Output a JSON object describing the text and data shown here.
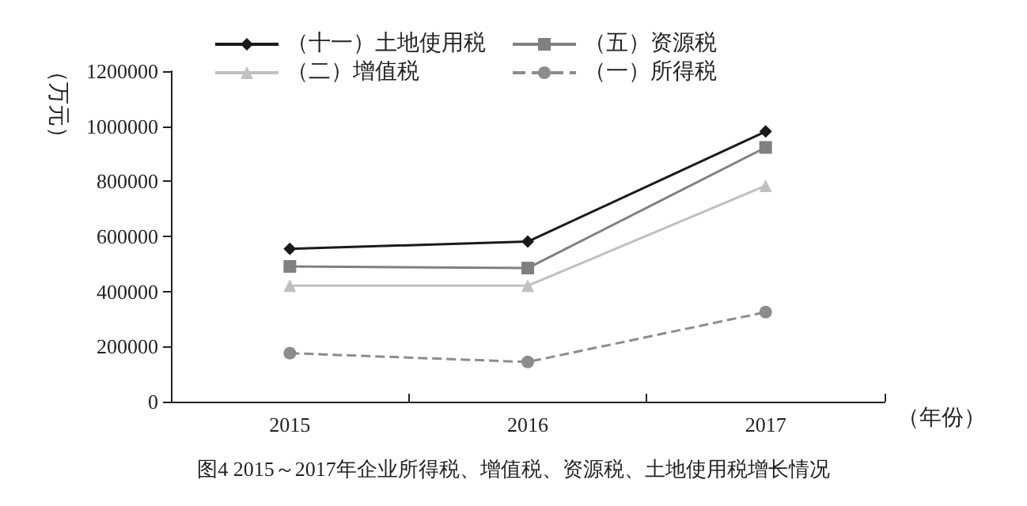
{
  "chart_data": {
    "type": "line",
    "title": "图4 2015～2017年企业所得税、增值税、资源税、土地使用税增长情况",
    "xlabel": "（年份）",
    "ylabel": "（万元）",
    "categories": [
      "2015",
      "2016",
      "2017"
    ],
    "series": [
      {
        "name": "（十一）土地使用税",
        "color": "#1a1a1a",
        "marker": "diamond",
        "line_style": "solid",
        "values": [
          555000,
          581000,
          981000
        ]
      },
      {
        "name": "（五）资源税",
        "color": "#808080",
        "marker": "square",
        "line_style": "solid",
        "values": [
          491000,
          485000,
          923000
        ]
      },
      {
        "name": "（二）增值税",
        "color": "#c0c0c0",
        "marker": "triangle",
        "line_style": "solid",
        "values": [
          421000,
          421000,
          784000
        ]
      },
      {
        "name": "（一）所得税",
        "color": "#8c8c8c",
        "marker": "circle",
        "line_style": "dashed",
        "values": [
          176000,
          144000,
          325000
        ]
      }
    ],
    "ylim": [
      0,
      1200000
    ],
    "yticks": [
      0,
      200000,
      400000,
      600000,
      800000,
      1000000,
      1200000
    ],
    "grid": false,
    "legend": "top"
  }
}
